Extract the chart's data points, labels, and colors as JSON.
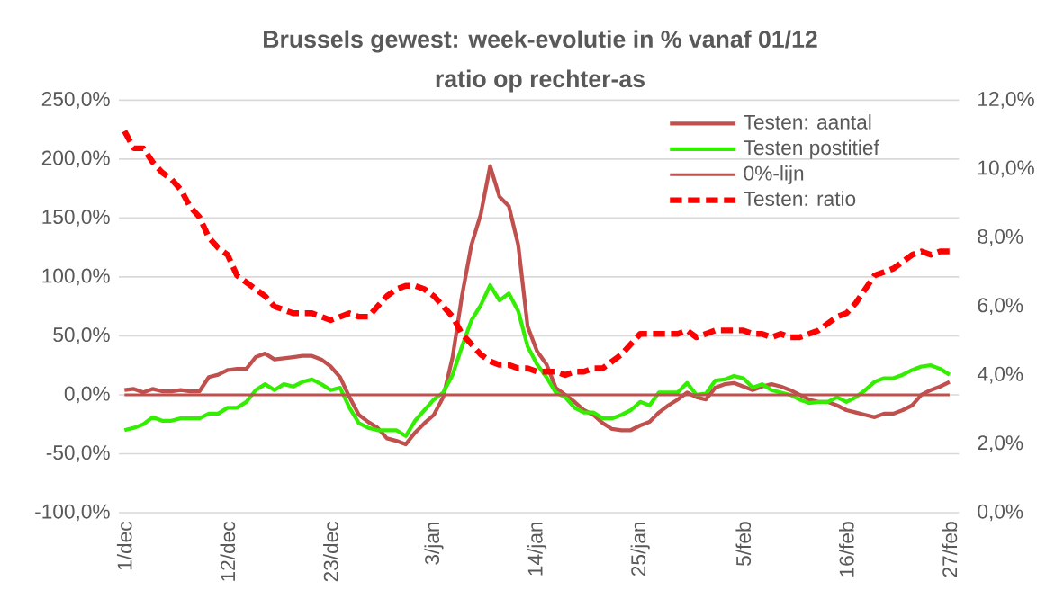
{
  "chart_data": {
    "type": "line",
    "title": "Brussels gewest: week-evolutie in %  vanaf 01/12",
    "subtitle": "ratio op rechter-as",
    "categories": [
      "1/dec",
      null,
      null,
      null,
      null,
      null,
      null,
      null,
      null,
      null,
      null,
      "12/dec",
      null,
      null,
      null,
      null,
      null,
      null,
      null,
      null,
      null,
      null,
      "23/dec",
      null,
      null,
      null,
      null,
      null,
      null,
      null,
      null,
      null,
      null,
      "3/jan",
      null,
      null,
      null,
      null,
      null,
      null,
      null,
      null,
      null,
      null,
      "14/jan",
      null,
      null,
      null,
      null,
      null,
      null,
      null,
      null,
      null,
      null,
      "25/jan",
      null,
      null,
      null,
      null,
      null,
      null,
      null,
      null,
      null,
      null,
      "5/feb",
      null,
      null,
      null,
      null,
      null,
      null,
      null,
      null,
      null,
      null,
      "16/feb",
      null,
      null,
      null,
      null,
      null,
      null,
      null,
      null,
      null,
      null,
      "27/feb"
    ],
    "series": [
      {
        "name": "Testen: aantal",
        "color": "#c0504d",
        "axis": "y",
        "line_style": "solid",
        "values": [
          4,
          5,
          2,
          5,
          3,
          3,
          4,
          3,
          3,
          15,
          17,
          21,
          22,
          22,
          32,
          35,
          30,
          31,
          32,
          33,
          33,
          30,
          24,
          15,
          -2,
          -17,
          -23,
          -28,
          -37,
          -39,
          -42,
          -32,
          -24,
          -17,
          -2,
          32,
          84,
          127,
          153,
          194,
          168,
          160,
          127,
          58,
          37,
          26,
          6,
          0,
          -6,
          -13,
          -17,
          -24,
          -29,
          -30,
          -30,
          -26,
          -23,
          -15,
          -9,
          -4,
          2,
          -2,
          -4,
          6,
          9,
          10,
          7,
          4,
          7,
          9,
          7,
          4,
          0,
          -4,
          -6,
          -6,
          -9,
          -13,
          -15,
          -17,
          -19,
          -16,
          -16,
          -13,
          -9,
          0,
          4,
          7,
          11
        ]
      },
      {
        "name": "Testen postitief",
        "color": "#33ee00",
        "axis": "y",
        "line_style": "solid",
        "values": [
          -30,
          -28,
          -25,
          -19,
          -22,
          -22,
          -20,
          -20,
          -20,
          -16,
          -16,
          -11,
          -11,
          -6,
          4,
          9,
          4,
          9,
          7,
          11,
          13,
          9,
          4,
          6,
          -11,
          -24,
          -28,
          -30,
          -30,
          -30,
          -35,
          -22,
          -13,
          -4,
          2,
          17,
          41,
          63,
          76,
          93,
          80,
          86,
          71,
          41,
          26,
          15,
          2,
          -2,
          -11,
          -15,
          -15,
          -20,
          -20,
          -17,
          -13,
          -6,
          -9,
          2,
          2,
          2,
          10,
          0,
          1,
          12,
          13,
          16,
          14,
          6,
          9,
          4,
          2,
          0,
          -4,
          -7,
          -6,
          -6,
          -2,
          -6,
          -2,
          4,
          11,
          14,
          14,
          17,
          21,
          24,
          25,
          22,
          17
        ]
      },
      {
        "name": "0%-lijn",
        "color": "#c0504d",
        "axis": "y",
        "line_style": "solid",
        "values": [
          0,
          0,
          0,
          0,
          0,
          0,
          0,
          0,
          0,
          0,
          0,
          0,
          0,
          0,
          0,
          0,
          0,
          0,
          0,
          0,
          0,
          0,
          0,
          0,
          0,
          0,
          0,
          0,
          0,
          0,
          0,
          0,
          0,
          0,
          0,
          0,
          0,
          0,
          0,
          0,
          0,
          0,
          0,
          0,
          0,
          0,
          0,
          0,
          0,
          0,
          0,
          0,
          0,
          0,
          0,
          0,
          0,
          0,
          0,
          0,
          0,
          0,
          0,
          0,
          0,
          0,
          0,
          0,
          0,
          0,
          0,
          0,
          0,
          0,
          0,
          0,
          0,
          0,
          0,
          0,
          0,
          0,
          0,
          0,
          0,
          0,
          0,
          0,
          0
        ]
      },
      {
        "name": "Testen: ratio",
        "color": "#ff0000",
        "axis": "y2",
        "line_style": "dashed",
        "values": [
          11.1,
          10.6,
          10.6,
          10.2,
          9.9,
          9.7,
          9.4,
          8.9,
          8.6,
          8.0,
          7.7,
          7.5,
          6.9,
          6.7,
          6.5,
          6.3,
          6.0,
          5.9,
          5.8,
          5.8,
          5.8,
          5.7,
          5.6,
          5.7,
          5.8,
          5.7,
          5.7,
          6.0,
          6.3,
          6.5,
          6.6,
          6.6,
          6.5,
          6.3,
          6.0,
          5.7,
          5.2,
          4.9,
          4.6,
          4.4,
          4.3,
          4.3,
          4.2,
          4.2,
          4.1,
          4.1,
          4.1,
          4.0,
          4.1,
          4.1,
          4.2,
          4.2,
          4.4,
          4.6,
          4.9,
          5.2,
          5.2,
          5.2,
          5.2,
          5.2,
          5.3,
          5.1,
          5.2,
          5.3,
          5.3,
          5.3,
          5.3,
          5.2,
          5.2,
          5.1,
          5.2,
          5.1,
          5.1,
          5.2,
          5.3,
          5.5,
          5.7,
          5.8,
          6.1,
          6.5,
          6.9,
          7.0,
          7.1,
          7.3,
          7.5,
          7.6,
          7.5,
          7.6,
          7.6
        ]
      }
    ],
    "ylim": [
      -100,
      250
    ],
    "yticks": [
      {
        "value": -100,
        "label": "-100,0%"
      },
      {
        "value": -50,
        "label": "-50,0%"
      },
      {
        "value": 0,
        "label": "0,0%"
      },
      {
        "value": 50,
        "label": "50,0%"
      },
      {
        "value": 100,
        "label": "100,0%"
      },
      {
        "value": 150,
        "label": "150,0%"
      },
      {
        "value": 200,
        "label": "200,0%"
      },
      {
        "value": 250,
        "label": "250,0%"
      }
    ],
    "y2lim": [
      0,
      12
    ],
    "y2ticks": [
      {
        "value": 0,
        "label": "0,0%"
      },
      {
        "value": 2,
        "label": "2,0%"
      },
      {
        "value": 4,
        "label": "4,0%"
      },
      {
        "value": 6,
        "label": "6,0%"
      },
      {
        "value": 8,
        "label": "8,0%"
      },
      {
        "value": 10,
        "label": "10,0%"
      },
      {
        "value": 12,
        "label": "12,0%"
      }
    ],
    "grid": "y",
    "legend": "top right"
  }
}
